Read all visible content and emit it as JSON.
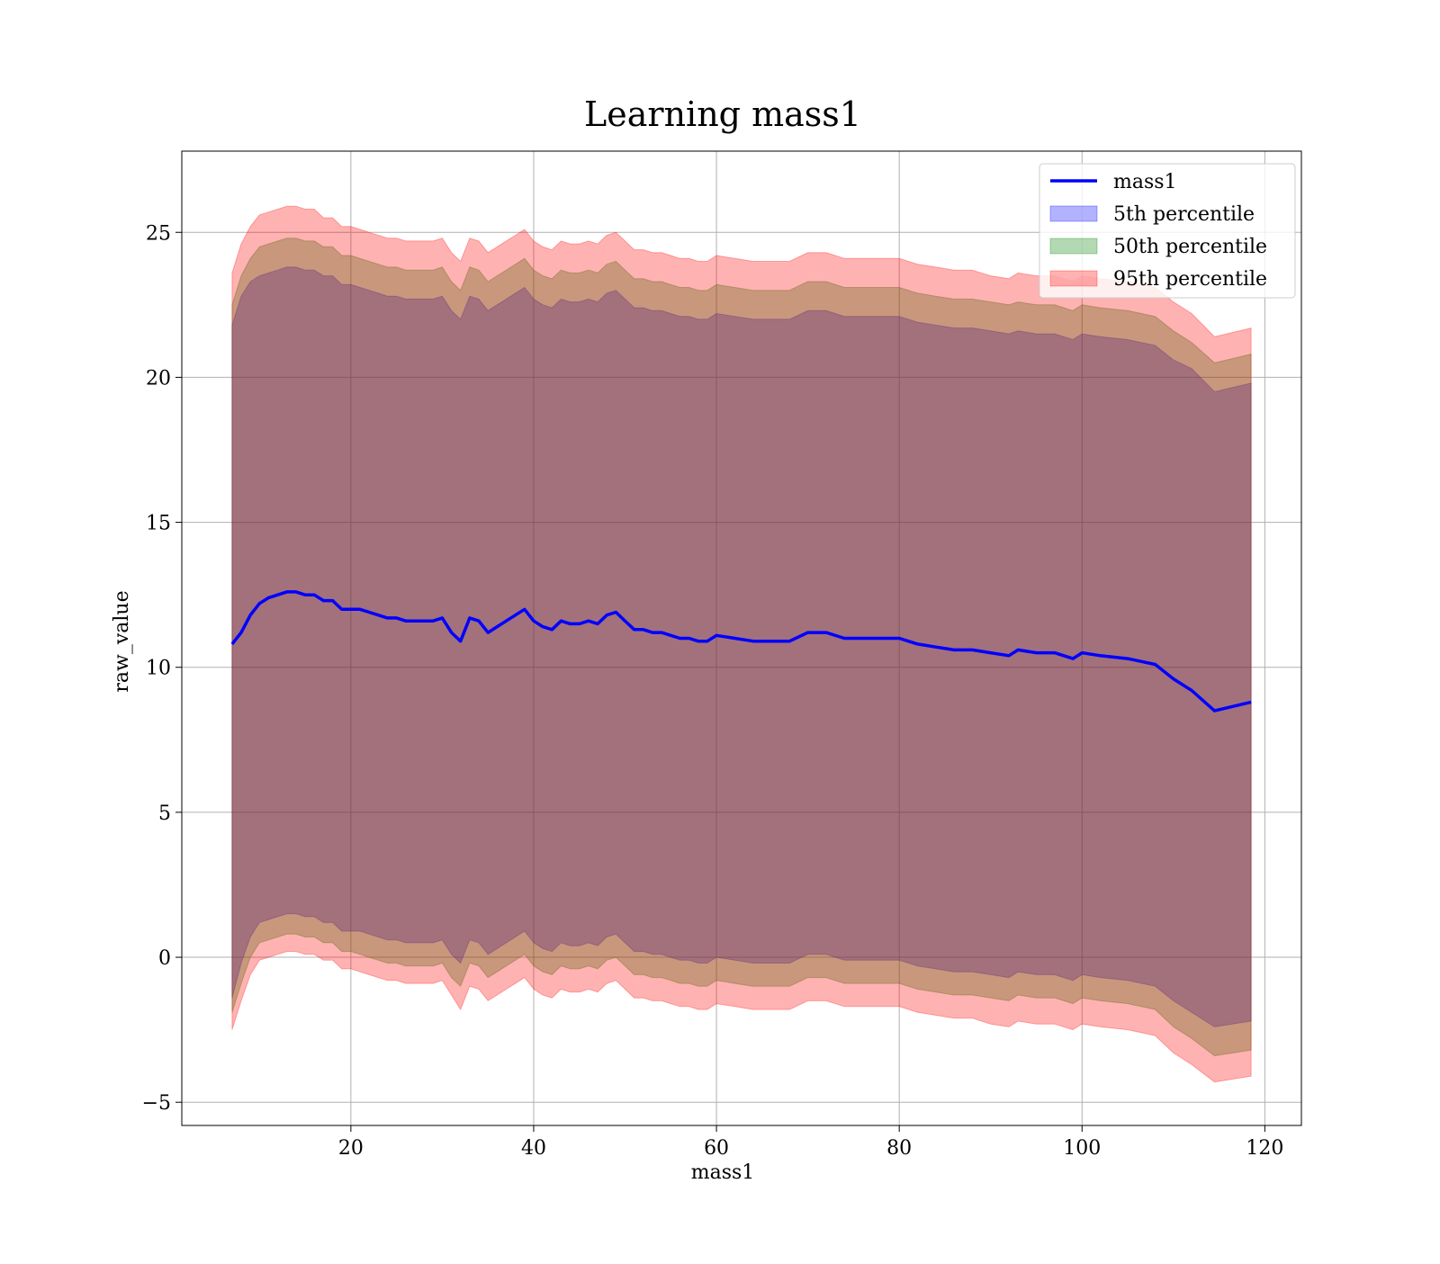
{
  "chart_data": {
    "type": "area",
    "title": "Learning mass1",
    "xlabel": "mass1",
    "ylabel": "raw_value",
    "xlim": [
      1.5,
      124.0
    ],
    "ylim": [
      -5.8,
      27.8
    ],
    "xticks": [
      20,
      40,
      60,
      80,
      100,
      120
    ],
    "yticks": [
      -5,
      0,
      5,
      10,
      15,
      20,
      25
    ],
    "xtick_labels": [
      "20",
      "40",
      "60",
      "80",
      "100",
      "120"
    ],
    "ytick_labels": [
      "−5",
      "0",
      "5",
      "10",
      "15",
      "20",
      "25"
    ],
    "grid": true,
    "legend_position": "top-right",
    "x": [
      7,
      8,
      9,
      10,
      11,
      12,
      13,
      14,
      15,
      16,
      17,
      18,
      19,
      20,
      21,
      22,
      23,
      24,
      25,
      26,
      27,
      28,
      29,
      30,
      31,
      32,
      33,
      34,
      35,
      36,
      37,
      38,
      39,
      40,
      41,
      42,
      43,
      44,
      45,
      46,
      47,
      48,
      49,
      50,
      51,
      52,
      53,
      54,
      55,
      56,
      57,
      58,
      59,
      60,
      62,
      64,
      66,
      68,
      70,
      72,
      74,
      76,
      78,
      80,
      82,
      84,
      86,
      88,
      90,
      92,
      93,
      95,
      97,
      99,
      100,
      102,
      105,
      108,
      110,
      112,
      114.5,
      118.5
    ],
    "series": [
      {
        "name": "mass1",
        "kind": "line",
        "color": "#0000ff",
        "values": [
          10.8,
          11.2,
          11.8,
          12.2,
          12.4,
          12.5,
          12.6,
          12.6,
          12.5,
          12.5,
          12.3,
          12.3,
          12.0,
          12.0,
          12.0,
          11.9,
          11.8,
          11.7,
          11.7,
          11.6,
          11.6,
          11.6,
          11.6,
          11.7,
          11.2,
          10.9,
          11.7,
          11.6,
          11.2,
          11.4,
          11.6,
          11.8,
          12.0,
          11.6,
          11.4,
          11.3,
          11.6,
          11.5,
          11.5,
          11.6,
          11.5,
          11.8,
          11.9,
          11.6,
          11.3,
          11.3,
          11.2,
          11.2,
          11.1,
          11.0,
          11.0,
          10.9,
          10.9,
          11.1,
          11.0,
          10.9,
          10.9,
          10.9,
          11.2,
          11.2,
          11.0,
          11.0,
          11.0,
          11.0,
          10.8,
          10.7,
          10.6,
          10.6,
          10.5,
          10.4,
          10.6,
          10.5,
          10.5,
          10.3,
          10.5,
          10.4,
          10.3,
          10.1,
          9.6,
          9.2,
          8.5,
          8.8
        ]
      },
      {
        "name": "5th percentile",
        "kind": "band",
        "color": "#0000ff",
        "lower": [
          -1.4,
          -0.2,
          0.7,
          1.2,
          1.3,
          1.4,
          1.5,
          1.5,
          1.4,
          1.4,
          1.2,
          1.2,
          0.9,
          0.9,
          0.9,
          0.8,
          0.7,
          0.6,
          0.6,
          0.5,
          0.5,
          0.5,
          0.5,
          0.6,
          0.1,
          -0.2,
          0.6,
          0.5,
          0.1,
          0.3,
          0.5,
          0.7,
          0.9,
          0.5,
          0.3,
          0.2,
          0.5,
          0.4,
          0.4,
          0.5,
          0.4,
          0.7,
          0.8,
          0.5,
          0.2,
          0.2,
          0.1,
          0.1,
          0.0,
          -0.1,
          -0.1,
          -0.2,
          -0.2,
          0.0,
          -0.1,
          -0.2,
          -0.2,
          -0.2,
          0.1,
          0.1,
          -0.1,
          -0.1,
          -0.1,
          -0.1,
          -0.3,
          -0.4,
          -0.5,
          -0.5,
          -0.6,
          -0.7,
          -0.5,
          -0.6,
          -0.6,
          -0.8,
          -0.6,
          -0.7,
          -0.8,
          -1.0,
          -1.5,
          -1.9,
          -2.4,
          -2.2
        ],
        "upper": [
          21.8,
          22.8,
          23.3,
          23.5,
          23.6,
          23.7,
          23.8,
          23.8,
          23.7,
          23.7,
          23.5,
          23.5,
          23.2,
          23.2,
          23.1,
          23.0,
          22.9,
          22.8,
          22.8,
          22.7,
          22.7,
          22.7,
          22.7,
          22.8,
          22.3,
          22.0,
          22.8,
          22.7,
          22.3,
          22.5,
          22.7,
          22.9,
          23.1,
          22.7,
          22.5,
          22.4,
          22.7,
          22.6,
          22.6,
          22.7,
          22.6,
          22.9,
          23.0,
          22.7,
          22.4,
          22.4,
          22.3,
          22.3,
          22.2,
          22.1,
          22.1,
          22.0,
          22.0,
          22.2,
          22.1,
          22.0,
          22.0,
          22.0,
          22.3,
          22.3,
          22.1,
          22.1,
          22.1,
          22.1,
          21.9,
          21.8,
          21.7,
          21.7,
          21.6,
          21.5,
          21.6,
          21.5,
          21.5,
          21.3,
          21.5,
          21.4,
          21.3,
          21.1,
          20.6,
          20.3,
          19.5,
          19.8
        ]
      },
      {
        "name": "50th percentile",
        "kind": "band",
        "color": "#008000",
        "lower": [
          -1.9,
          -0.9,
          0.0,
          0.5,
          0.6,
          0.7,
          0.8,
          0.8,
          0.7,
          0.7,
          0.5,
          0.5,
          0.2,
          0.2,
          0.1,
          0.0,
          -0.1,
          -0.2,
          -0.2,
          -0.3,
          -0.3,
          -0.3,
          -0.3,
          -0.2,
          -0.7,
          -1.0,
          -0.2,
          -0.3,
          -0.7,
          -0.5,
          -0.3,
          -0.1,
          0.1,
          -0.3,
          -0.5,
          -0.6,
          -0.3,
          -0.4,
          -0.4,
          -0.3,
          -0.4,
          -0.1,
          0.0,
          -0.3,
          -0.6,
          -0.6,
          -0.7,
          -0.7,
          -0.8,
          -0.9,
          -0.9,
          -1.0,
          -1.0,
          -0.8,
          -0.9,
          -1.0,
          -1.0,
          -1.0,
          -0.7,
          -0.7,
          -0.9,
          -0.9,
          -0.9,
          -0.9,
          -1.1,
          -1.2,
          -1.3,
          -1.3,
          -1.4,
          -1.5,
          -1.3,
          -1.4,
          -1.4,
          -1.6,
          -1.4,
          -1.5,
          -1.6,
          -1.8,
          -2.4,
          -2.8,
          -3.4,
          -3.2
        ],
        "upper": [
          22.5,
          23.5,
          24.1,
          24.5,
          24.6,
          24.7,
          24.8,
          24.8,
          24.7,
          24.7,
          24.5,
          24.5,
          24.2,
          24.2,
          24.1,
          24.0,
          23.9,
          23.8,
          23.8,
          23.7,
          23.7,
          23.7,
          23.7,
          23.8,
          23.3,
          23.0,
          23.8,
          23.7,
          23.3,
          23.5,
          23.7,
          23.9,
          24.1,
          23.7,
          23.5,
          23.4,
          23.7,
          23.6,
          23.6,
          23.7,
          23.6,
          23.9,
          24.0,
          23.7,
          23.4,
          23.4,
          23.3,
          23.3,
          23.2,
          23.1,
          23.1,
          23.0,
          23.0,
          23.2,
          23.1,
          23.0,
          23.0,
          23.0,
          23.3,
          23.3,
          23.1,
          23.1,
          23.1,
          23.1,
          22.9,
          22.8,
          22.7,
          22.7,
          22.6,
          22.5,
          22.6,
          22.5,
          22.5,
          22.3,
          22.5,
          22.4,
          22.3,
          22.1,
          21.6,
          21.2,
          20.5,
          20.8
        ]
      },
      {
        "name": "95th percentile",
        "kind": "band",
        "color": "#ff0000",
        "lower": [
          -2.5,
          -1.5,
          -0.6,
          -0.1,
          0.0,
          0.1,
          0.2,
          0.2,
          0.1,
          0.1,
          -0.1,
          -0.1,
          -0.4,
          -0.4,
          -0.5,
          -0.6,
          -0.7,
          -0.8,
          -0.8,
          -0.9,
          -0.9,
          -0.9,
          -0.9,
          -0.8,
          -1.3,
          -1.8,
          -1.0,
          -1.1,
          -1.5,
          -1.3,
          -1.1,
          -0.9,
          -0.7,
          -1.1,
          -1.3,
          -1.4,
          -1.1,
          -1.2,
          -1.2,
          -1.1,
          -1.2,
          -0.9,
          -0.8,
          -1.1,
          -1.4,
          -1.4,
          -1.5,
          -1.5,
          -1.6,
          -1.7,
          -1.7,
          -1.8,
          -1.8,
          -1.6,
          -1.7,
          -1.8,
          -1.8,
          -1.8,
          -1.5,
          -1.5,
          -1.7,
          -1.7,
          -1.7,
          -1.7,
          -1.9,
          -2.0,
          -2.1,
          -2.1,
          -2.3,
          -2.4,
          -2.2,
          -2.3,
          -2.3,
          -2.5,
          -2.3,
          -2.4,
          -2.5,
          -2.7,
          -3.3,
          -3.7,
          -4.3,
          -4.1
        ],
        "upper": [
          23.6,
          24.6,
          25.2,
          25.6,
          25.7,
          25.8,
          25.9,
          25.9,
          25.8,
          25.8,
          25.5,
          25.5,
          25.2,
          25.2,
          25.1,
          25.0,
          24.9,
          24.8,
          24.8,
          24.7,
          24.7,
          24.7,
          24.7,
          24.8,
          24.3,
          24.0,
          24.8,
          24.7,
          24.3,
          24.5,
          24.7,
          24.9,
          25.1,
          24.7,
          24.5,
          24.4,
          24.7,
          24.6,
          24.6,
          24.7,
          24.6,
          24.9,
          25.0,
          24.7,
          24.4,
          24.4,
          24.3,
          24.3,
          24.2,
          24.1,
          24.1,
          24.0,
          24.0,
          24.2,
          24.1,
          24.0,
          24.0,
          24.0,
          24.3,
          24.3,
          24.1,
          24.1,
          24.1,
          24.1,
          23.9,
          23.8,
          23.7,
          23.7,
          23.5,
          23.4,
          23.6,
          23.5,
          23.5,
          23.3,
          23.5,
          23.4,
          23.3,
          23.1,
          22.6,
          22.2,
          21.4,
          21.7
        ]
      }
    ]
  }
}
